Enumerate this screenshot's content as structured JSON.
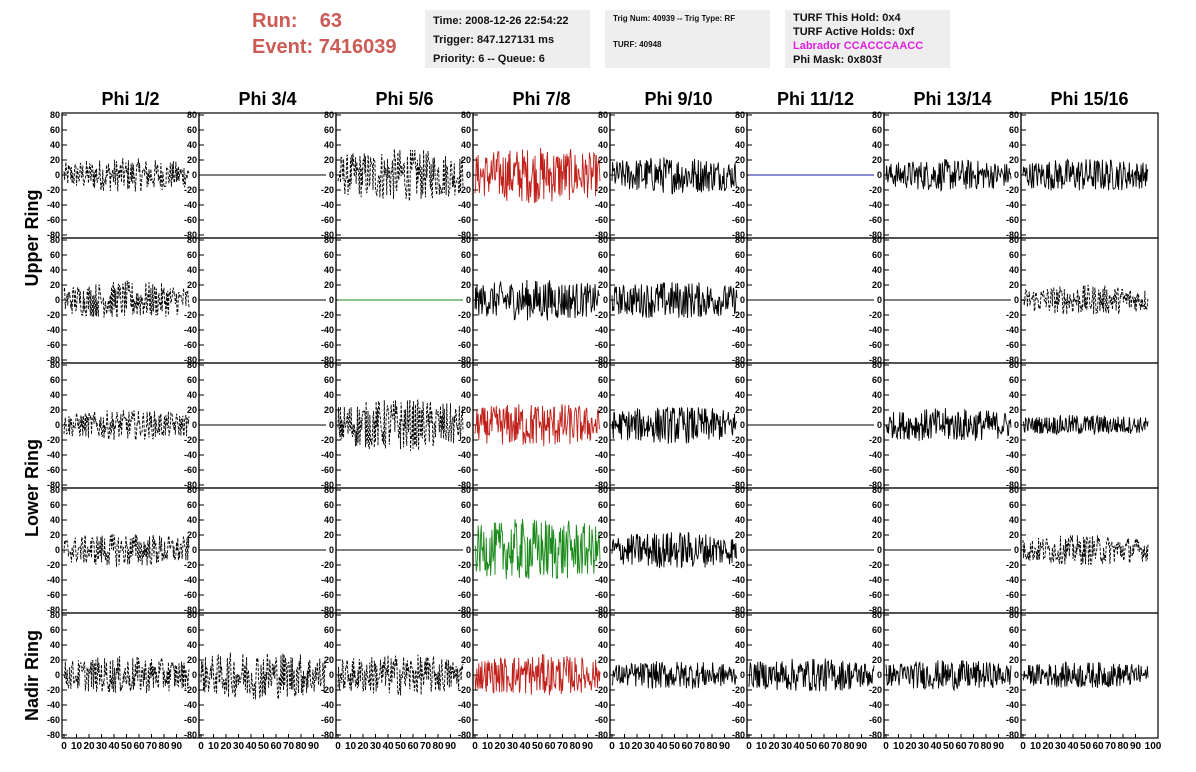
{
  "header": {
    "run_label": "Run:",
    "run_value": "63",
    "event_label": "Event:",
    "event_value": "7416039"
  },
  "info_panel": {
    "time": "Time: 2008-12-26 22:54:22",
    "trigger": "Trigger: 847.127131 ms",
    "priority": "Priority: 6 -- Queue: 6"
  },
  "trig_panel": {
    "trig_line": "Trig Num: 40939 -- Trig Type: RF",
    "turf_line": "TURF: 40948"
  },
  "turf_panel": {
    "this_hold": "TURF This Hold: 0x4",
    "active_holds": "TURF Active Holds: 0xf",
    "labrador": "Labrador CCACCCAACC",
    "phi_mask": "Phi Mask: 0x803f",
    "labrador_color": "#e020e0"
  },
  "chart_data": {
    "type": "line",
    "columns": [
      "Phi 1/2",
      "Phi 3/4",
      "Phi 5/6",
      "Phi 7/8",
      "Phi 9/10",
      "Phi 11/12",
      "Phi 13/14",
      "Phi 15/16"
    ],
    "ring_labels": [
      {
        "text": "Upper Ring",
        "rows": [
          0,
          1
        ]
      },
      {
        "text": "Lower Ring",
        "rows": [
          2,
          3
        ]
      },
      {
        "text": "Nadir Ring",
        "rows": [
          4
        ]
      }
    ],
    "ylim": [
      -80,
      80
    ],
    "yticks": [
      "-80",
      "-60",
      "-40",
      "-20",
      "0",
      "20",
      "40",
      "60",
      "80"
    ],
    "xlim": [
      0,
      100
    ],
    "xticks": [
      "0",
      "10",
      "20",
      "30",
      "40",
      "50",
      "60",
      "70",
      "80",
      "90"
    ],
    "last_xtick": "100",
    "colors": {
      "black": "#000000",
      "red": "#c0201a",
      "green": "#1a8a1a",
      "blue": "#1a1aa0"
    },
    "cells": [
      [
        {
          "style": "dash",
          "color": "black",
          "amp": 18
        },
        {
          "style": "flat",
          "color": "black",
          "amp": 0
        },
        {
          "style": "dash",
          "color": "black",
          "amp": 28
        },
        {
          "style": "solid",
          "color": "red",
          "amp": 30
        },
        {
          "style": "solid",
          "color": "black",
          "amp": 20
        },
        {
          "style": "flat",
          "color": "blue",
          "amp": 0
        },
        {
          "style": "solid",
          "color": "black",
          "amp": 17
        },
        {
          "style": "solid",
          "color": "black",
          "amp": 18
        }
      ],
      [
        {
          "style": "dash",
          "color": "black",
          "amp": 20
        },
        {
          "style": "flat",
          "color": "black",
          "amp": 0
        },
        {
          "style": "flat",
          "color": "green",
          "amp": 0
        },
        {
          "style": "solid",
          "color": "black",
          "amp": 22
        },
        {
          "style": "solid",
          "color": "black",
          "amp": 20
        },
        {
          "style": "flat",
          "color": "black",
          "amp": 0
        },
        {
          "style": "flat",
          "color": "black",
          "amp": 0
        },
        {
          "style": "dash",
          "color": "black",
          "amp": 16
        }
      ],
      [
        {
          "style": "dash",
          "color": "black",
          "amp": 16
        },
        {
          "style": "flat",
          "color": "black",
          "amp": 0
        },
        {
          "style": "dash",
          "color": "black",
          "amp": 28
        },
        {
          "style": "solid",
          "color": "red",
          "amp": 24
        },
        {
          "style": "solid",
          "color": "black",
          "amp": 20
        },
        {
          "style": "flat",
          "color": "black",
          "amp": 0
        },
        {
          "style": "solid",
          "color": "black",
          "amp": 18
        },
        {
          "style": "solid",
          "color": "black",
          "amp": 11
        }
      ],
      [
        {
          "style": "dash",
          "color": "black",
          "amp": 18
        },
        {
          "style": "flat",
          "color": "black",
          "amp": 0
        },
        {
          "style": "flat",
          "color": "black",
          "amp": 0
        },
        {
          "style": "solid",
          "color": "green",
          "amp": 34
        },
        {
          "style": "solid",
          "color": "black",
          "amp": 20
        },
        {
          "style": "flat",
          "color": "black",
          "amp": 0
        },
        {
          "style": "flat",
          "color": "black",
          "amp": 0
        },
        {
          "style": "dash",
          "color": "black",
          "amp": 16
        }
      ],
      [
        {
          "style": "dash",
          "color": "black",
          "amp": 20
        },
        {
          "style": "dash",
          "color": "black",
          "amp": 26
        },
        {
          "style": "dash",
          "color": "black",
          "amp": 22
        },
        {
          "style": "solid",
          "color": "red",
          "amp": 22
        },
        {
          "style": "solid",
          "color": "black",
          "amp": 15
        },
        {
          "style": "solid",
          "color": "black",
          "amp": 18
        },
        {
          "style": "solid",
          "color": "black",
          "amp": 16
        },
        {
          "style": "solid",
          "color": "black",
          "amp": 14
        }
      ]
    ]
  }
}
